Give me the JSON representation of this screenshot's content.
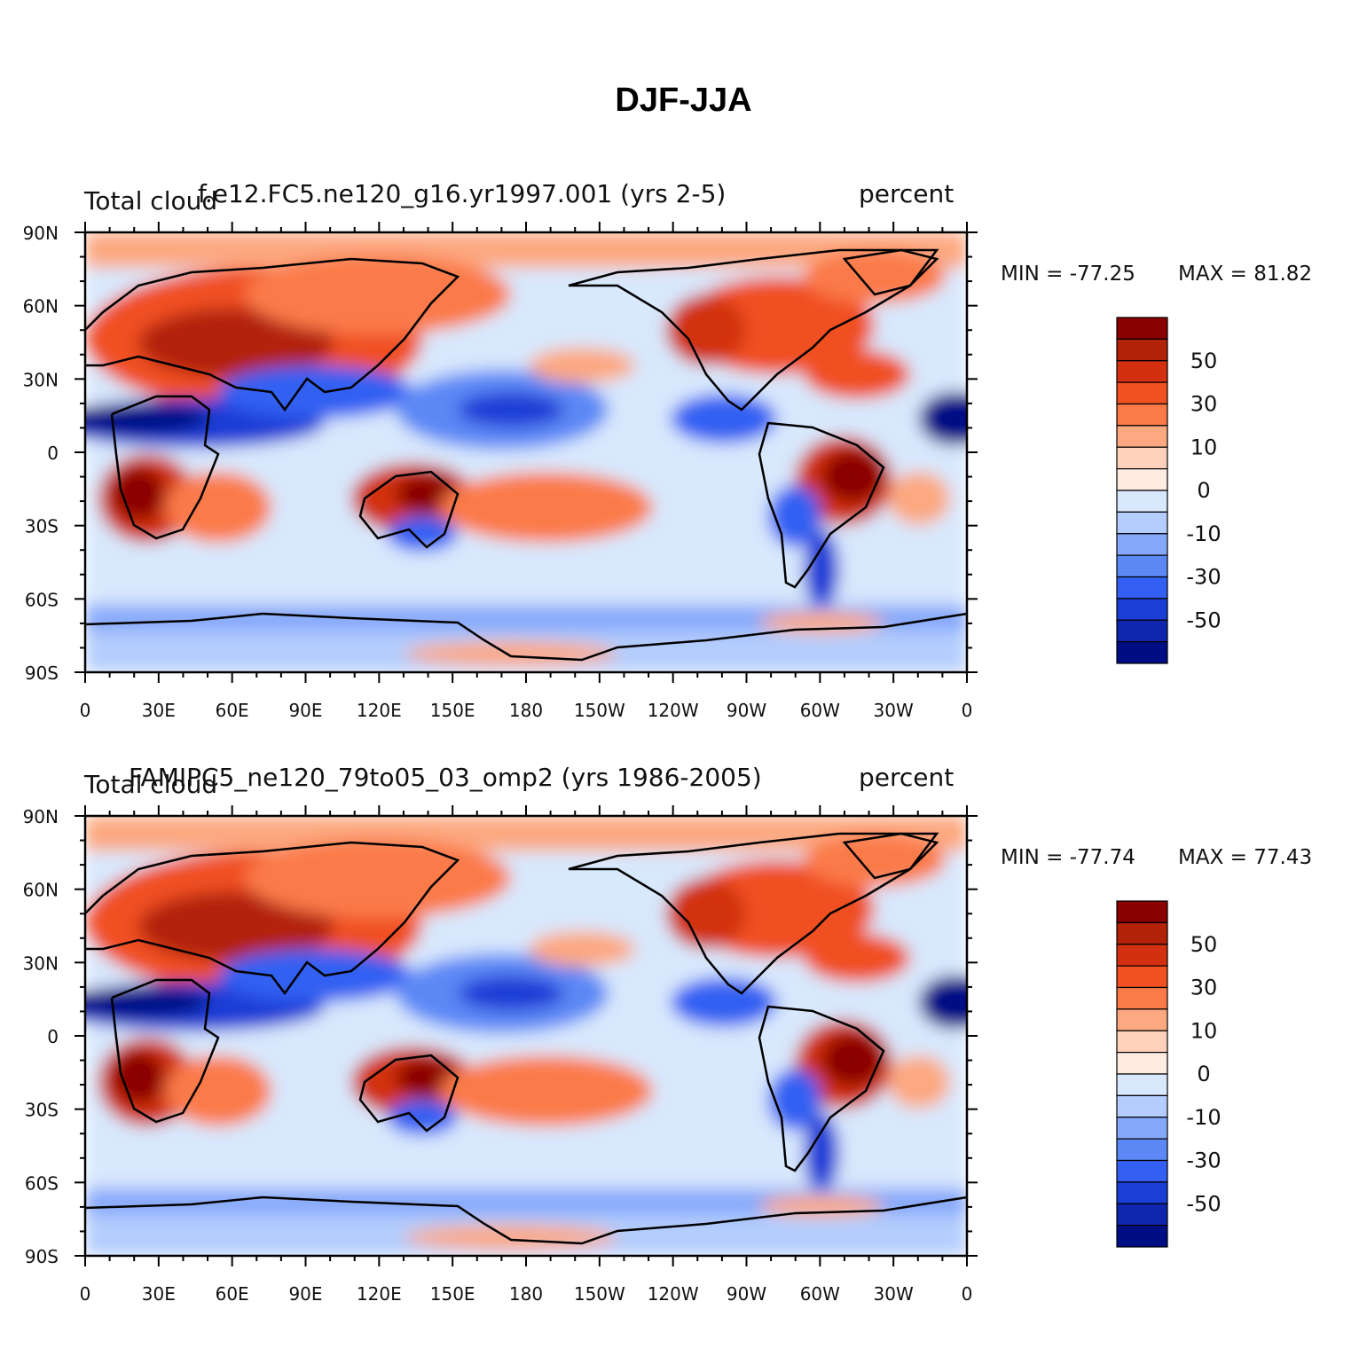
{
  "title": "DJF-JJA",
  "chart_data": [
    {
      "type": "heatmap",
      "title_left": "Total cloud",
      "title_center": "f.e12.FC5.ne120_g16.yr1997.001 (yrs 2-5)",
      "title_right": "percent",
      "min_label": "MIN = -77.25",
      "max_label": "MAX = 81.82",
      "min": -77.25,
      "max": 81.82,
      "x_ticks": [
        "0",
        "30E",
        "60E",
        "90E",
        "120E",
        "150E",
        "180",
        "150W",
        "120W",
        "90W",
        "60W",
        "30W",
        "0"
      ],
      "y_ticks": [
        "90N",
        "60N",
        "30N",
        "0",
        "30S",
        "60S",
        "90S"
      ],
      "xlim": [
        0,
        360
      ],
      "ylim": [
        -90,
        90
      ],
      "colorbar_levels": [
        "50",
        "30",
        "10",
        "0",
        "-10",
        "-30",
        "-50"
      ]
    },
    {
      "type": "heatmap",
      "title_left": "Total cloud",
      "title_center": "FAMIPC5_ne120_79to05_03_omp2 (yrs 1986-2005)",
      "title_right": "percent",
      "min_label": "MIN = -77.74",
      "max_label": "MAX = 77.43",
      "min": -77.74,
      "max": 77.43,
      "x_ticks": [
        "0",
        "30E",
        "60E",
        "90E",
        "120E",
        "150E",
        "180",
        "150W",
        "120W",
        "90W",
        "60W",
        "30W",
        "0"
      ],
      "y_ticks": [
        "90N",
        "60N",
        "30N",
        "0",
        "30S",
        "60S",
        "90S"
      ],
      "xlim": [
        0,
        360
      ],
      "ylim": [
        -90,
        90
      ],
      "colorbar_levels": [
        "50",
        "30",
        "10",
        "0",
        "-10",
        "-30",
        "-50"
      ]
    }
  ],
  "colorbar_colors": [
    "#8b0000",
    "#b22208",
    "#d23010",
    "#f05022",
    "#fb7a48",
    "#fca880",
    "#fed2ba",
    "#ffece0",
    "#d8e8fd",
    "#b4cdfd",
    "#86a8fa",
    "#5c88f5",
    "#3360f2",
    "#1a3ed6",
    "#0f25ad",
    "#000e85"
  ]
}
